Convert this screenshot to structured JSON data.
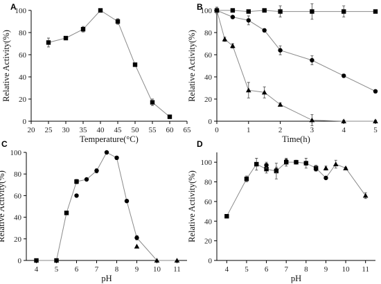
{
  "chart_data": [
    {
      "type": "line",
      "panel": "A",
      "xlabel": "Temperature(°C)",
      "ylabel": "Relative Activity(%)",
      "xlim": [
        20,
        65
      ],
      "ylim": [
        0,
        100
      ],
      "xticks": [
        20,
        25,
        30,
        35,
        40,
        45,
        50,
        55,
        60,
        65
      ],
      "yticks": [
        0,
        20,
        40,
        60,
        80,
        100
      ],
      "series": [
        {
          "marker": "square",
          "x": [
            25,
            30,
            35,
            40,
            45,
            50,
            55,
            60
          ],
          "y": [
            71,
            75,
            83,
            100,
            90,
            51,
            17,
            4
          ],
          "err": [
            4,
            1.5,
            2.5,
            0,
            2.5,
            0,
            3,
            1
          ]
        }
      ]
    },
    {
      "type": "line",
      "panel": "B",
      "xlabel": "Time(h)",
      "ylabel": "Relative Activity(%)",
      "xlim": [
        0,
        5
      ],
      "ylim": [
        0,
        100
      ],
      "xticks": [
        0,
        1,
        2,
        3,
        4,
        5
      ],
      "yticks": [
        0,
        20,
        40,
        60,
        80,
        100
      ],
      "series": [
        {
          "marker": "square",
          "x": [
            0,
            0.5,
            1,
            1.5,
            2,
            3,
            4,
            5
          ],
          "y": [
            100,
            100,
            99,
            100,
            99,
            99,
            99,
            99
          ],
          "err": [
            3,
            1.5,
            1,
            1,
            5,
            7,
            5,
            1
          ]
        },
        {
          "marker": "circle",
          "x": [
            0,
            0.5,
            1,
            1.5,
            2,
            3,
            4,
            5
          ],
          "y": [
            100,
            94,
            91,
            82,
            64,
            55,
            41,
            27
          ],
          "err": [
            2,
            1,
            4,
            1.5,
            4,
            4,
            1.5,
            1
          ]
        },
        {
          "marker": "triangle",
          "x": [
            0,
            0.25,
            0.5,
            1,
            1.5,
            2,
            3,
            4,
            5
          ],
          "y": [
            100,
            74,
            68,
            28,
            26,
            15,
            1,
            0,
            0
          ],
          "err": [
            2,
            2,
            2,
            7,
            5,
            1.5,
            5,
            1,
            1
          ]
        }
      ]
    },
    {
      "type": "line",
      "panel": "C",
      "xlabel": "pH",
      "ylabel": "Relative Activity(%)",
      "xlim": [
        3.5,
        11.5
      ],
      "ylim": [
        0,
        100
      ],
      "xticks": [
        4,
        5,
        6,
        7,
        8,
        9,
        10,
        11
      ],
      "yticks": [
        0,
        20,
        40,
        60,
        80,
        100
      ],
      "series": [
        {
          "marker": "square",
          "x": [
            4,
            5,
            5.5,
            6
          ],
          "y": [
            0,
            0,
            44,
            73
          ],
          "err": [
            0,
            0,
            0,
            2
          ]
        },
        {
          "marker": "circle",
          "x": [
            6,
            6.5,
            7,
            7.5,
            8,
            8.5,
            9
          ],
          "y": [
            60,
            75,
            83,
            100,
            95,
            55,
            21
          ],
          "err": [
            0,
            0,
            2,
            0,
            1.5,
            0,
            2
          ]
        },
        {
          "marker": "triangle",
          "x": [
            9,
            10,
            11
          ],
          "y": [
            13,
            0,
            0
          ],
          "err": [
            0,
            0,
            0
          ]
        }
      ]
    },
    {
      "type": "line",
      "panel": "D",
      "xlabel": "pH",
      "ylabel": "Relative Activity(%)",
      "xlim": [
        3.5,
        11.5
      ],
      "ylim": [
        0,
        110
      ],
      "xticks": [
        4,
        5,
        6,
        7,
        8,
        9,
        10,
        11
      ],
      "yticks": [
        0,
        20,
        40,
        60,
        80,
        100
      ],
      "series": [
        {
          "marker": "square",
          "x": [
            4,
            5,
            5.5,
            6,
            6.5,
            7,
            7.5,
            8,
            8.5
          ],
          "y": [
            45,
            83,
            98,
            93,
            91,
            100,
            100,
            99,
            94
          ],
          "err": [
            0,
            3,
            6,
            4,
            8,
            4,
            2,
            5,
            3
          ]
        },
        {
          "marker": "circle",
          "x": [
            6,
            6.5,
            7,
            7.5,
            8,
            8.5,
            9
          ],
          "y": [
            97,
            92,
            101,
            100,
            99,
            93,
            84
          ],
          "err": [
            3,
            3,
            2,
            2,
            2,
            2,
            1
          ]
        },
        {
          "marker": "triangle",
          "x": [
            9,
            9.5,
            10,
            11
          ],
          "y": [
            94,
            98,
            94,
            66
          ],
          "err": [
            2,
            4,
            1,
            3
          ]
        }
      ]
    }
  ]
}
